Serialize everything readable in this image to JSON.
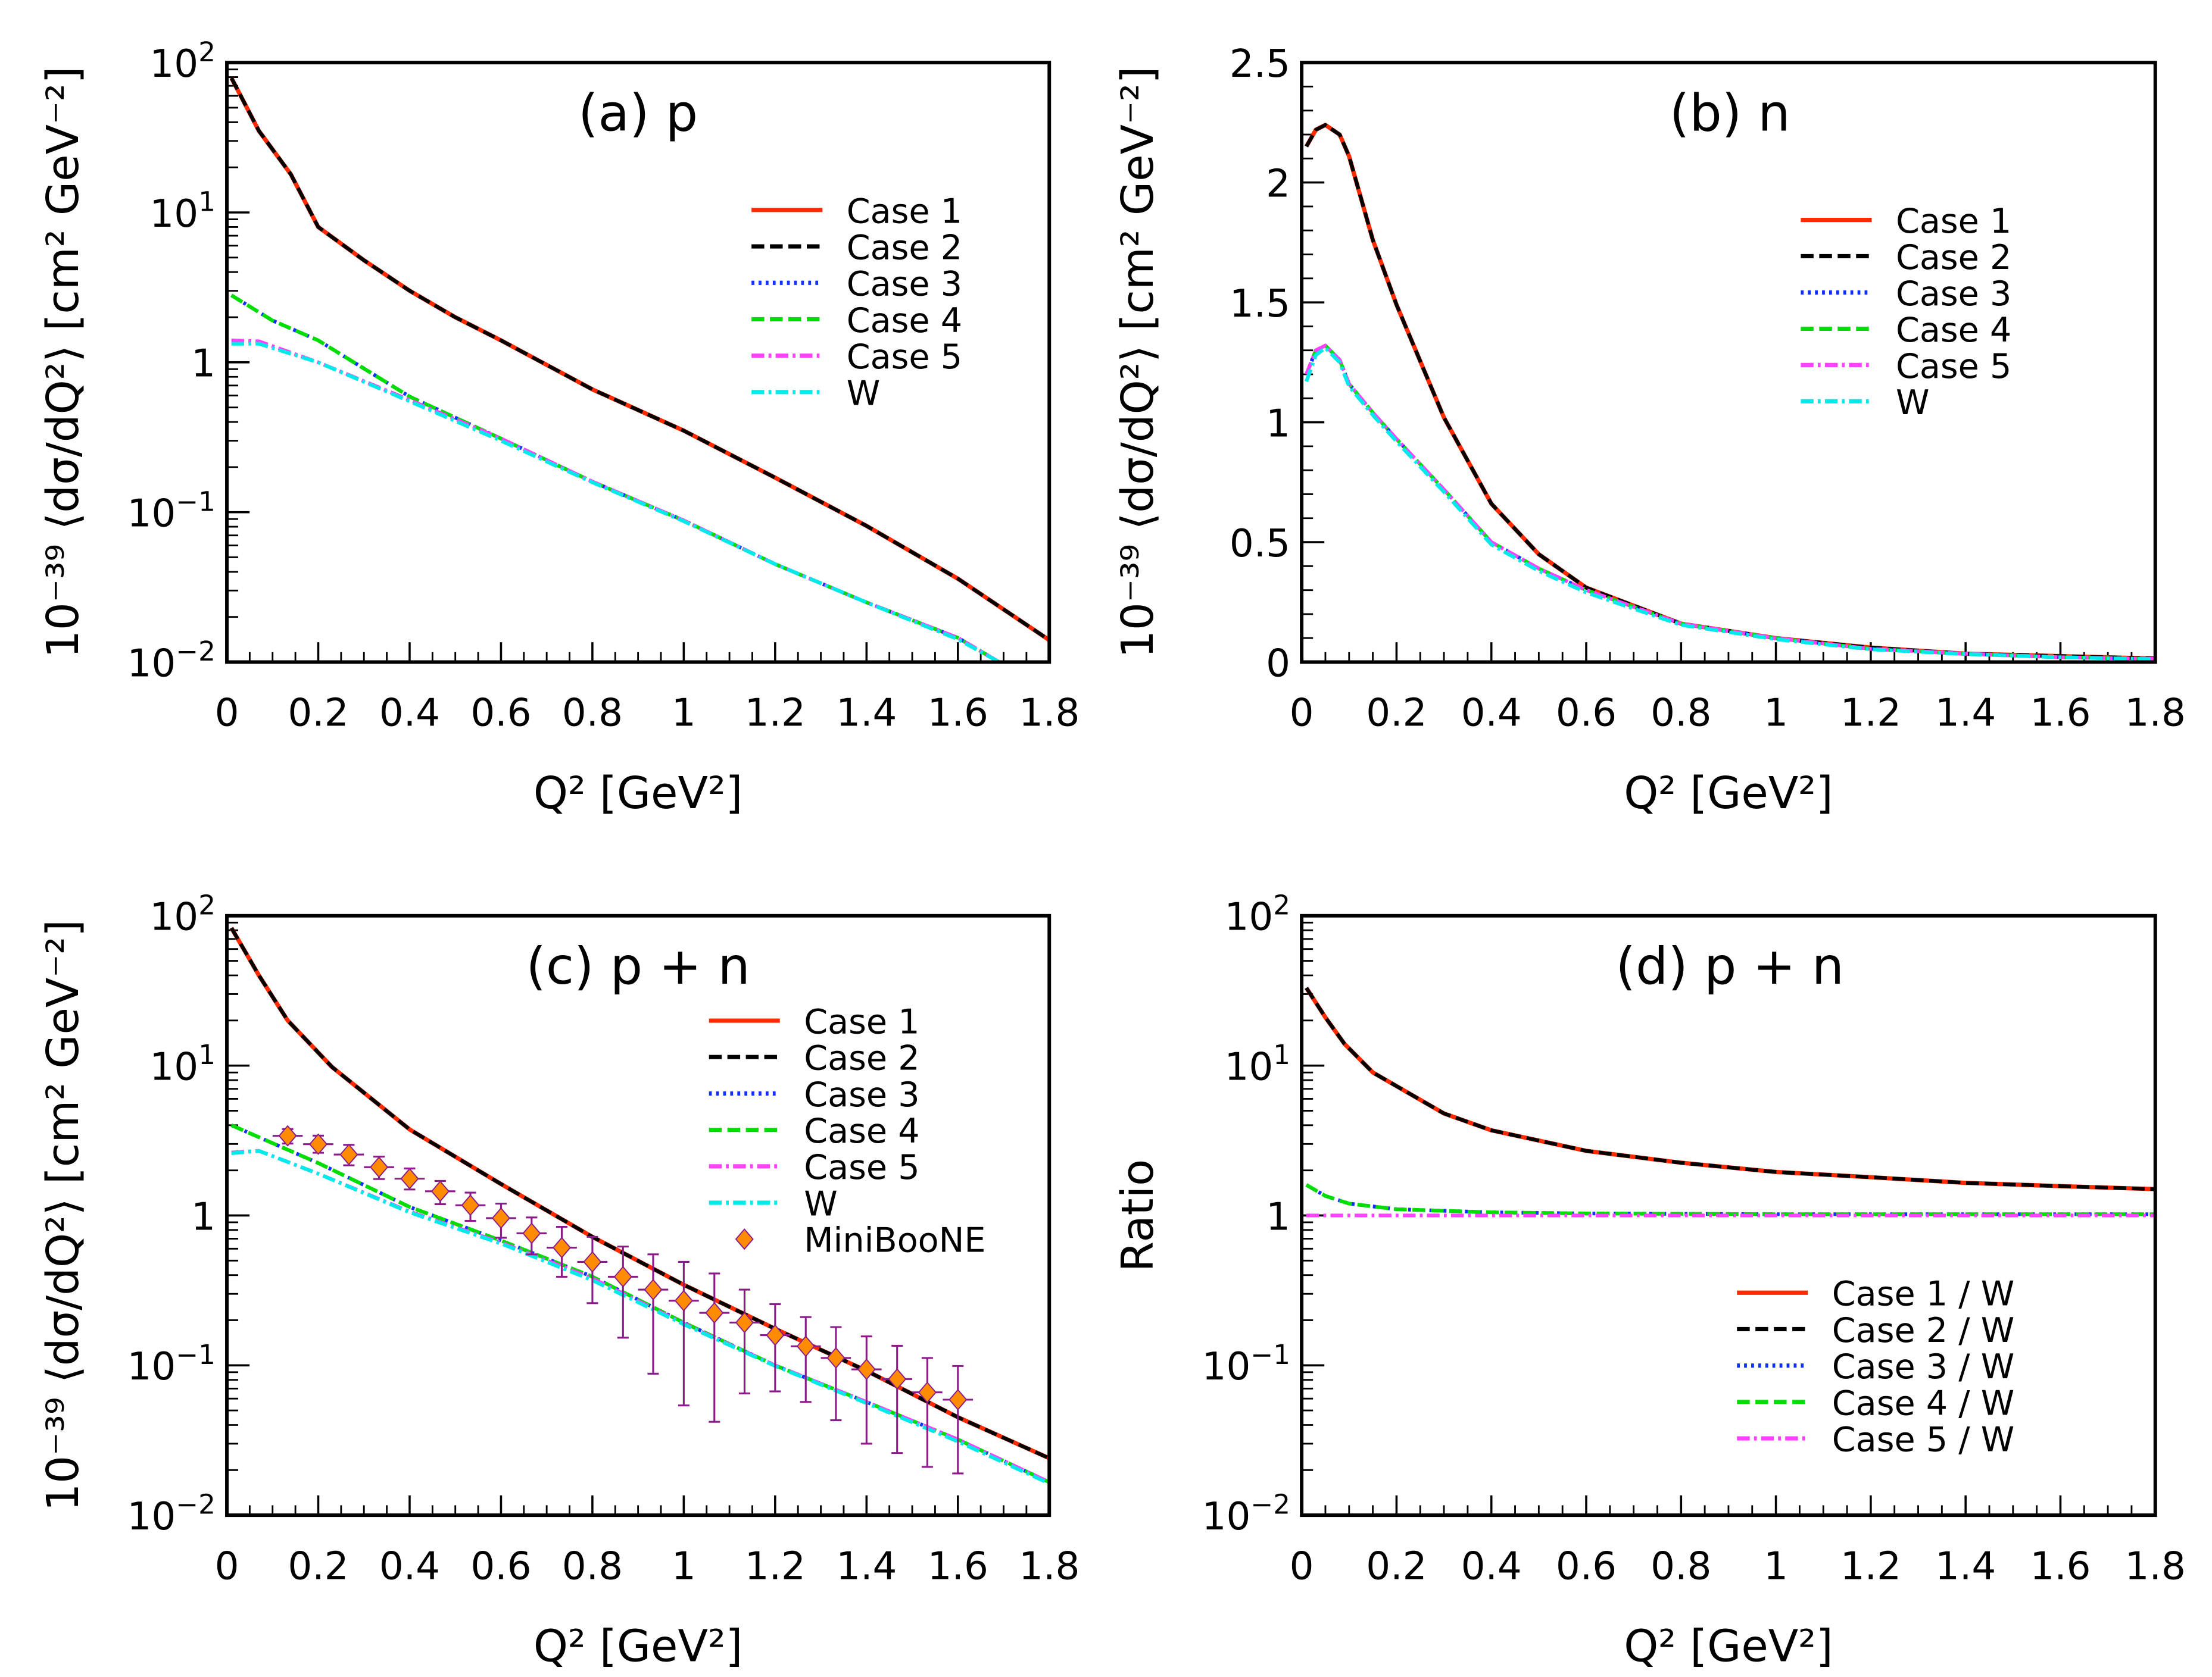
{
  "colors": {
    "case1": "#ff2a00",
    "case2": "#000000",
    "case3": "#1030ff",
    "case4": "#00dd00",
    "case5": "#ff40ff",
    "W": "#00eaea",
    "data_marker": "#ff8c00",
    "data_error": "#8b1a8b"
  },
  "chart_data": [
    {
      "type": "line",
      "title": "(a) p",
      "xlabel": "Q² [GeV²]",
      "ylabel": "10⁻³⁹ ⟨dσ/dQ²⟩ [cm² GeV⁻²]",
      "xlim": [
        0,
        1.8
      ],
      "ylim": [
        0.01,
        100
      ],
      "yscale": "log",
      "grid": false,
      "legend": "top-right",
      "xticks": [
        "0",
        "0.2",
        "0.4",
        "0.6",
        "0.8",
        "1",
        "1.2",
        "1.4",
        "1.6",
        "1.8"
      ],
      "yticks": [
        "10^-2",
        "10^-1",
        "1",
        "10^1",
        "10^2"
      ],
      "series": [
        {
          "name": "Case 1",
          "style": "solid",
          "color": "case1",
          "x": [
            0.01,
            0.07,
            0.14,
            0.2,
            0.3,
            0.4,
            0.5,
            0.6,
            0.8,
            1.0,
            1.2,
            1.4,
            1.6,
            1.8
          ],
          "y": [
            79,
            35,
            18,
            8,
            4.8,
            3.0,
            2.0,
            1.4,
            0.66,
            0.35,
            0.17,
            0.081,
            0.036,
            0.014
          ]
        },
        {
          "name": "Case 2",
          "style": "dashed",
          "color": "case2",
          "x": [
            0.01,
            0.07,
            0.14,
            0.2,
            0.3,
            0.4,
            0.5,
            0.6,
            0.8,
            1.0,
            1.2,
            1.4,
            1.6,
            1.8
          ],
          "y": [
            79,
            35,
            18,
            8,
            4.8,
            3.0,
            2.0,
            1.4,
            0.66,
            0.35,
            0.17,
            0.081,
            0.036,
            0.014
          ]
        },
        {
          "name": "Case 3",
          "style": "dotted",
          "color": "case3",
          "x": [
            0.01,
            0.1,
            0.2,
            0.4,
            0.6,
            0.8,
            1.0,
            1.2,
            1.4,
            1.6,
            1.69
          ],
          "y": [
            2.8,
            1.9,
            1.4,
            0.59,
            0.31,
            0.16,
            0.088,
            0.045,
            0.025,
            0.0145,
            0.01
          ]
        },
        {
          "name": "Case 4",
          "style": "dashed",
          "color": "case4",
          "x": [
            0.01,
            0.1,
            0.2,
            0.4,
            0.6,
            0.8,
            1.0,
            1.2,
            1.4,
            1.6,
            1.69
          ],
          "y": [
            2.8,
            1.9,
            1.4,
            0.59,
            0.31,
            0.16,
            0.088,
            0.045,
            0.025,
            0.0145,
            0.01
          ]
        },
        {
          "name": "Case 5",
          "style": "dashdot",
          "color": "case5",
          "x": [
            0.01,
            0.07,
            0.2,
            0.4,
            0.6,
            0.8,
            1.0,
            1.2,
            1.4,
            1.6,
            1.69
          ],
          "y": [
            1.4,
            1.38,
            1.0,
            0.56,
            0.31,
            0.16,
            0.088,
            0.045,
            0.025,
            0.0145,
            0.01
          ]
        },
        {
          "name": "W",
          "style": "dashdot",
          "color": "W",
          "x": [
            0.01,
            0.07,
            0.2,
            0.4,
            0.6,
            0.8,
            1.0,
            1.2,
            1.4,
            1.6,
            1.69
          ],
          "y": [
            1.33,
            1.33,
            1.0,
            0.55,
            0.3,
            0.158,
            0.087,
            0.045,
            0.025,
            0.0142,
            0.01
          ]
        }
      ]
    },
    {
      "type": "line",
      "title": "(b) n",
      "xlabel": "Q² [GeV²]",
      "ylabel": "10⁻³⁹ ⟨dσ/dQ²⟩ [cm² GeV⁻²]",
      "xlim": [
        0,
        1.8
      ],
      "ylim": [
        0,
        2.5
      ],
      "yscale": "linear",
      "grid": false,
      "legend": "top-right",
      "xticks": [
        "0",
        "0.2",
        "0.4",
        "0.6",
        "0.8",
        "1",
        "1.2",
        "1.4",
        "1.6",
        "1.8"
      ],
      "yticks": [
        "0",
        "0.5",
        "1",
        "1.5",
        "2",
        "2.5"
      ],
      "series": [
        {
          "name": "Case 1",
          "style": "solid",
          "color": "case1",
          "x": [
            0.01,
            0.03,
            0.05,
            0.08,
            0.1,
            0.15,
            0.2,
            0.3,
            0.4,
            0.5,
            0.6,
            0.8,
            1.0,
            1.2,
            1.4,
            1.6,
            1.8
          ],
          "y": [
            2.15,
            2.22,
            2.24,
            2.2,
            2.11,
            1.76,
            1.49,
            1.02,
            0.66,
            0.45,
            0.31,
            0.16,
            0.1,
            0.06,
            0.035,
            0.025,
            0.015
          ]
        },
        {
          "name": "Case 2",
          "style": "dashed",
          "color": "case2",
          "x": [
            0.01,
            0.03,
            0.05,
            0.08,
            0.1,
            0.15,
            0.2,
            0.3,
            0.4,
            0.5,
            0.6,
            0.8,
            1.0,
            1.2,
            1.4,
            1.6,
            1.8
          ],
          "y": [
            2.15,
            2.22,
            2.24,
            2.2,
            2.11,
            1.76,
            1.49,
            1.02,
            0.66,
            0.45,
            0.31,
            0.16,
            0.1,
            0.06,
            0.035,
            0.025,
            0.015
          ]
        },
        {
          "name": "Case 3",
          "style": "dotted",
          "color": "case3",
          "x": [
            0.01,
            0.03,
            0.05,
            0.08,
            0.1,
            0.15,
            0.2,
            0.3,
            0.4,
            0.5,
            0.6,
            0.8,
            1.0,
            1.2,
            1.4,
            1.6,
            1.8
          ],
          "y": [
            1.2,
            1.3,
            1.32,
            1.26,
            1.16,
            1.04,
            0.93,
            0.72,
            0.5,
            0.39,
            0.3,
            0.16,
            0.1,
            0.055,
            0.035,
            0.02,
            0.013
          ]
        },
        {
          "name": "Case 4",
          "style": "dashed",
          "color": "case4",
          "x": [
            0.01,
            0.03,
            0.05,
            0.08,
            0.1,
            0.15,
            0.2,
            0.3,
            0.4,
            0.5,
            0.6,
            0.8,
            1.0,
            1.2,
            1.4,
            1.6,
            1.8
          ],
          "y": [
            1.2,
            1.3,
            1.32,
            1.26,
            1.16,
            1.04,
            0.93,
            0.72,
            0.5,
            0.39,
            0.3,
            0.16,
            0.1,
            0.055,
            0.035,
            0.02,
            0.013
          ]
        },
        {
          "name": "Case 5",
          "style": "dashdot",
          "color": "case5",
          "x": [
            0.01,
            0.03,
            0.05,
            0.08,
            0.1,
            0.15,
            0.2,
            0.3,
            0.4,
            0.5,
            0.6,
            0.8,
            1.0,
            1.2,
            1.4,
            1.6,
            1.8
          ],
          "y": [
            1.2,
            1.3,
            1.32,
            1.26,
            1.16,
            1.04,
            0.93,
            0.72,
            0.5,
            0.39,
            0.3,
            0.16,
            0.1,
            0.055,
            0.035,
            0.02,
            0.013
          ]
        },
        {
          "name": "W",
          "style": "dashdot",
          "color": "W",
          "x": [
            0.01,
            0.03,
            0.05,
            0.08,
            0.1,
            0.15,
            0.2,
            0.3,
            0.4,
            0.5,
            0.6,
            0.8,
            1.0,
            1.2,
            1.4,
            1.6,
            1.8
          ],
          "y": [
            1.17,
            1.28,
            1.31,
            1.25,
            1.15,
            1.03,
            0.92,
            0.71,
            0.49,
            0.38,
            0.29,
            0.155,
            0.095,
            0.053,
            0.033,
            0.02,
            0.012
          ]
        }
      ]
    },
    {
      "type": "line",
      "title": "(c) p + n",
      "xlabel": "Q² [GeV²]",
      "ylabel": "10⁻³⁹ ⟨dσ/dQ²⟩ [cm² GeV⁻²]",
      "xlim": [
        0,
        1.8
      ],
      "ylim": [
        0.01,
        100
      ],
      "yscale": "log",
      "grid": false,
      "legend": "top-right",
      "xticks": [
        "0",
        "0.2",
        "0.4",
        "0.6",
        "0.8",
        "1",
        "1.2",
        "1.4",
        "1.6",
        "1.8"
      ],
      "yticks": [
        "10^-2",
        "10^-1",
        "1",
        "10^1",
        "10^2"
      ],
      "series": [
        {
          "name": "Case 1",
          "style": "solid",
          "color": "case1",
          "x": [
            0.01,
            0.07,
            0.133,
            0.23,
            0.4,
            0.6,
            0.8,
            1.0,
            1.2,
            1.4,
            1.6,
            1.8
          ],
          "y": [
            83,
            40,
            20,
            9.8,
            3.75,
            1.62,
            0.72,
            0.345,
            0.175,
            0.092,
            0.045,
            0.024
          ]
        },
        {
          "name": "Case 2",
          "style": "dashed",
          "color": "case2",
          "x": [
            0.01,
            0.07,
            0.133,
            0.23,
            0.4,
            0.6,
            0.8,
            1.0,
            1.2,
            1.4,
            1.6,
            1.8
          ],
          "y": [
            83,
            40,
            20,
            9.8,
            3.75,
            1.62,
            0.72,
            0.345,
            0.175,
            0.092,
            0.045,
            0.024
          ]
        },
        {
          "name": "Case 3",
          "style": "dotted",
          "color": "case3",
          "x": [
            0.01,
            0.2,
            0.4,
            0.6,
            0.8,
            1.0,
            1.2,
            1.4,
            1.6,
            1.8
          ],
          "y": [
            4.0,
            2.24,
            1.14,
            0.68,
            0.39,
            0.193,
            0.1,
            0.057,
            0.032,
            0.0166
          ]
        },
        {
          "name": "Case 4",
          "style": "dashed",
          "color": "case4",
          "x": [
            0.01,
            0.2,
            0.4,
            0.6,
            0.8,
            1.0,
            1.2,
            1.4,
            1.6,
            1.8
          ],
          "y": [
            4.0,
            2.24,
            1.14,
            0.68,
            0.39,
            0.193,
            0.1,
            0.057,
            0.032,
            0.0166
          ]
        },
        {
          "name": "Case 5",
          "style": "dashdot",
          "color": "case5",
          "x": [
            0.01,
            0.07,
            0.2,
            0.4,
            0.6,
            0.8,
            1.0,
            1.2,
            1.4,
            1.6,
            1.8
          ],
          "y": [
            2.63,
            2.7,
            1.9,
            1.06,
            0.66,
            0.38,
            0.19,
            0.1,
            0.057,
            0.032,
            0.0166
          ]
        },
        {
          "name": "W",
          "style": "dashdot",
          "color": "W",
          "x": [
            0.01,
            0.07,
            0.2,
            0.4,
            0.6,
            0.8,
            1.0,
            1.2,
            1.4,
            1.6,
            1.8
          ],
          "y": [
            2.6,
            2.7,
            1.9,
            1.05,
            0.65,
            0.37,
            0.188,
            0.099,
            0.056,
            0.031,
            0.0163
          ]
        }
      ],
      "data_series": {
        "name": "MiniBooNE",
        "marker": "diamond",
        "x": [
          0.133,
          0.2,
          0.267,
          0.333,
          0.4,
          0.467,
          0.533,
          0.6,
          0.667,
          0.733,
          0.8,
          0.867,
          0.933,
          1.0,
          1.067,
          1.133,
          1.2,
          1.267,
          1.333,
          1.4,
          1.467,
          1.533,
          1.6
        ],
        "xerr": 0.033,
        "y": [
          3.4,
          2.99,
          2.55,
          2.1,
          1.76,
          1.45,
          1.17,
          0.96,
          0.76,
          0.61,
          0.49,
          0.39,
          0.32,
          0.27,
          0.224,
          0.193,
          0.159,
          0.134,
          0.112,
          0.094,
          0.081,
          0.066,
          0.059
        ],
        "y_high": [
          3.77,
          3.41,
          2.96,
          2.47,
          2.06,
          1.7,
          1.42,
          1.2,
          0.97,
          0.84,
          0.72,
          0.62,
          0.55,
          0.49,
          0.41,
          0.32,
          0.256,
          0.21,
          0.18,
          0.156,
          0.135,
          0.112,
          0.099
        ],
        "y_low": [
          3.02,
          2.62,
          2.16,
          1.75,
          1.49,
          1.19,
          0.92,
          0.71,
          0.55,
          0.39,
          0.26,
          0.153,
          0.088,
          0.054,
          0.042,
          0.065,
          0.067,
          0.057,
          0.043,
          0.03,
          0.026,
          0.021,
          0.019
        ]
      }
    },
    {
      "type": "line",
      "title": "(d) p + n",
      "xlabel": "Q² [GeV²]",
      "ylabel": "Ratio",
      "xlim": [
        0,
        1.8
      ],
      "ylim": [
        0.01,
        100
      ],
      "yscale": "log",
      "grid": false,
      "legend": "bottom-right",
      "xticks": [
        "0",
        "0.2",
        "0.4",
        "0.6",
        "0.8",
        "1",
        "1.2",
        "1.4",
        "1.6",
        "1.8"
      ],
      "yticks": [
        "10^-2",
        "10^-1",
        "1",
        "10^1",
        "10^2"
      ],
      "series": [
        {
          "name": "Case 1 / W",
          "style": "solid",
          "color": "case1",
          "x": [
            0.01,
            0.05,
            0.09,
            0.15,
            0.3,
            0.4,
            0.6,
            0.8,
            1.0,
            1.2,
            1.4,
            1.6,
            1.8
          ],
          "y": [
            33,
            21,
            14,
            9,
            4.8,
            3.7,
            2.7,
            2.25,
            1.95,
            1.8,
            1.65,
            1.57,
            1.5
          ]
        },
        {
          "name": "Case 2 / W",
          "style": "dashed",
          "color": "case2",
          "x": [
            0.01,
            0.05,
            0.09,
            0.15,
            0.3,
            0.4,
            0.6,
            0.8,
            1.0,
            1.2,
            1.4,
            1.6,
            1.8
          ],
          "y": [
            33,
            21,
            14,
            9,
            4.8,
            3.7,
            2.7,
            2.25,
            1.95,
            1.8,
            1.65,
            1.57,
            1.5
          ]
        },
        {
          "name": "Case 3 / W",
          "style": "dotted",
          "color": "case3",
          "x": [
            0.01,
            0.05,
            0.1,
            0.2,
            0.4,
            0.6,
            1.0,
            1.4,
            1.8
          ],
          "y": [
            1.6,
            1.35,
            1.2,
            1.1,
            1.05,
            1.03,
            1.02,
            1.02,
            1.02
          ]
        },
        {
          "name": "Case 4 / W",
          "style": "dashed",
          "color": "case4",
          "x": [
            0.01,
            0.05,
            0.1,
            0.2,
            0.4,
            0.6,
            1.0,
            1.4,
            1.8
          ],
          "y": [
            1.6,
            1.35,
            1.2,
            1.1,
            1.05,
            1.03,
            1.02,
            1.02,
            1.02
          ]
        },
        {
          "name": "Case 5 / W",
          "style": "dashdot",
          "color": "case5",
          "x": [
            0.01,
            1.8
          ],
          "y": [
            1.0,
            1.0
          ]
        }
      ]
    }
  ]
}
